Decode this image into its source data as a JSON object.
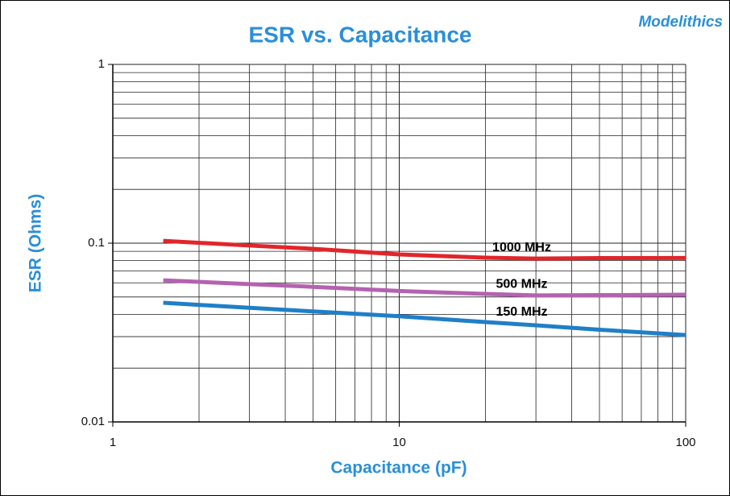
{
  "logo": "Modelithics",
  "chart_data": {
    "type": "line",
    "title": "ESR vs. Capacitance",
    "x_label": "Capacitance (pF)",
    "y_label": "ESR (Ohms)",
    "x": [
      1.5,
      3,
      5,
      10,
      20,
      30,
      50,
      100
    ],
    "series": [
      {
        "name": "1000 MHz",
        "color": "#e0262b",
        "values": [
          0.103,
          0.097,
          0.093,
          0.0865,
          0.083,
          0.082,
          0.0825,
          0.0826
        ]
      },
      {
        "name": "500 MHz",
        "color": "#b462b0",
        "values": [
          0.062,
          0.059,
          0.057,
          0.054,
          0.052,
          0.051,
          0.0512,
          0.0515
        ]
      },
      {
        "name": "150 MHz",
        "color": "#1f7fc8",
        "values": [
          0.0464,
          0.0435,
          0.0415,
          0.039,
          0.0362,
          0.0347,
          0.0328,
          0.0306
        ]
      }
    ],
    "xlim": [
      1,
      100
    ],
    "ylim": [
      0.01,
      1
    ],
    "xticks": [
      1,
      10,
      100
    ],
    "yticks": [
      0.01,
      0.1,
      1
    ],
    "xscale": "log",
    "yscale": "log",
    "grid": true
  }
}
